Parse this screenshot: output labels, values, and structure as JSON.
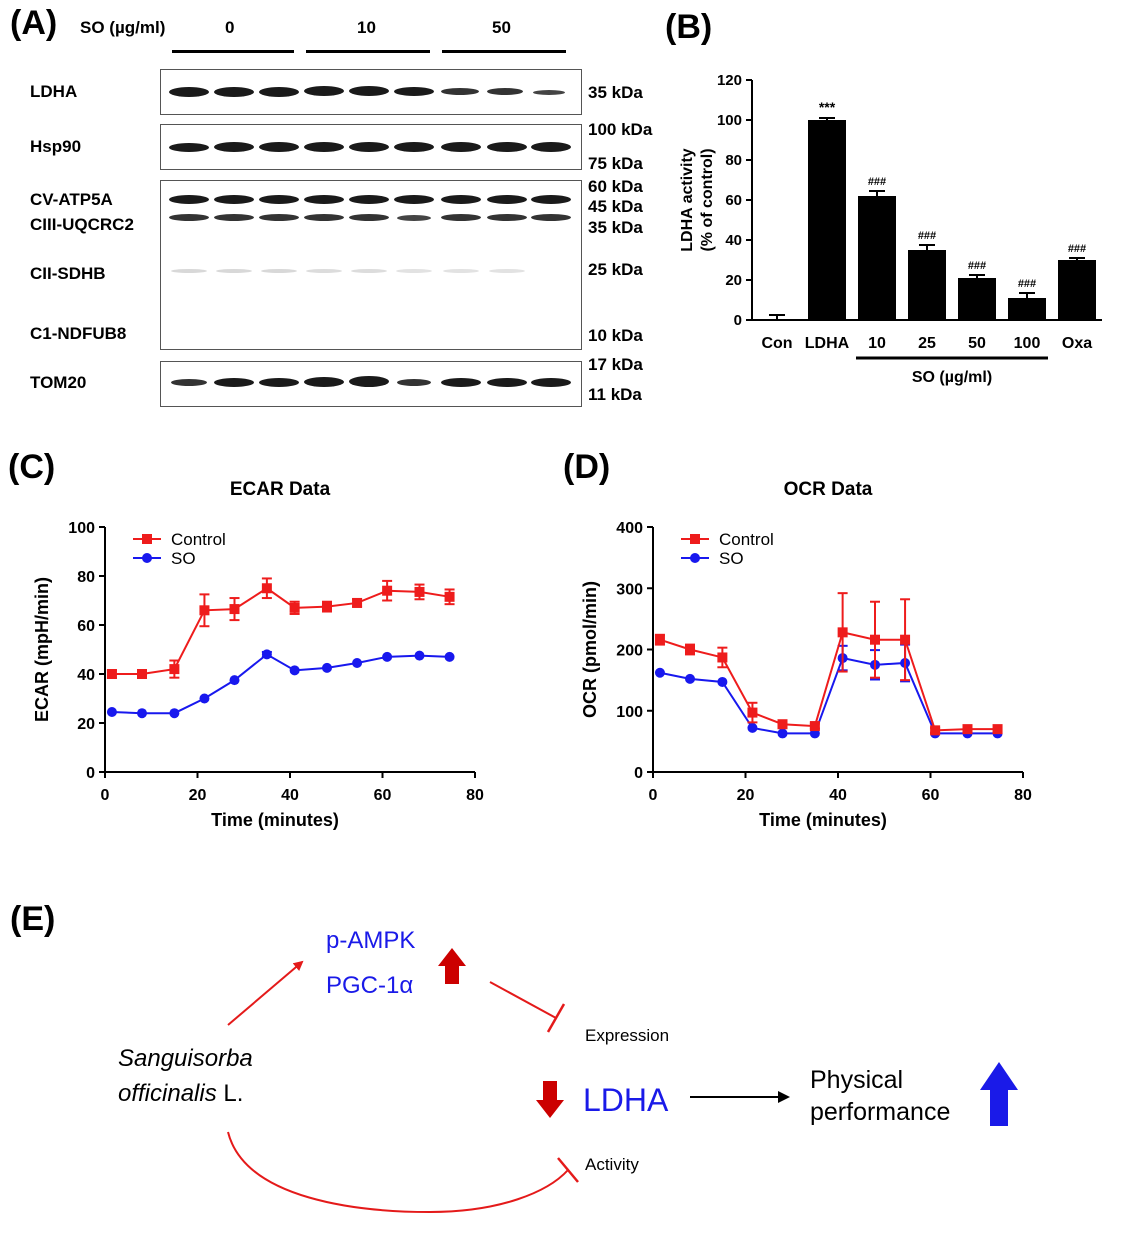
{
  "panels": {
    "a": "(A)",
    "b": "(B)",
    "c": "(C)",
    "d": "(D)",
    "e": "(E)"
  },
  "blot": {
    "so_label": "SO (µg/ml)",
    "groups": [
      "0",
      "10",
      "50"
    ],
    "rows": [
      {
        "name": "LDHA"
      },
      {
        "name": "Hsp90"
      },
      {
        "name": "CV-ATP5A"
      },
      {
        "name": "CIII-UQCRC2"
      },
      {
        "name": "CII-SDHB"
      },
      {
        "name": "C1-NDFUB8"
      },
      {
        "name": "TOM20"
      }
    ],
    "markers": [
      "35 kDa",
      "100 kDa",
      "75 kDa",
      "60 kDa",
      "45 kDa",
      "35 kDa",
      "25 kDa",
      "10 kDa",
      "17 kDa",
      "11 kDa"
    ]
  },
  "chart_data": [
    {
      "id": "B",
      "type": "bar",
      "ylabel_line1": "LDHA activity",
      "ylabel_line2": "(% of control)",
      "categories": [
        "Con",
        "LDHA",
        "10",
        "25",
        "50",
        "100",
        "Oxa"
      ],
      "values": [
        0,
        100,
        62,
        35,
        21,
        11,
        30
      ],
      "errors": [
        2.5,
        1,
        2.5,
        2.5,
        1.5,
        2.5,
        1
      ],
      "annotations": [
        "",
        "***",
        "###",
        "###",
        "###",
        "###",
        "###"
      ],
      "ylim": [
        0,
        120
      ],
      "yticks": [
        0,
        20,
        40,
        60,
        80,
        100,
        120
      ],
      "group_label": "SO (µg/ml)"
    },
    {
      "id": "C",
      "type": "line",
      "title": "ECAR Data",
      "xlabel": "Time (minutes)",
      "ylabel": "ECAR (mpH/min)",
      "xlim": [
        0,
        80
      ],
      "ylim": [
        0,
        100
      ],
      "xticks": [
        0,
        20,
        40,
        60,
        80
      ],
      "yticks": [
        0,
        20,
        40,
        60,
        80,
        100
      ],
      "series": [
        {
          "name": "Control",
          "color": "#ee1c1c",
          "marker": "square",
          "x": [
            1.5,
            8,
            15,
            21.5,
            28,
            35,
            41,
            48,
            54.5,
            61,
            68,
            74.5
          ],
          "y": [
            40,
            40,
            42,
            66,
            66.5,
            75,
            67,
            67.5,
            69,
            74,
            73.5,
            71.5
          ],
          "err": [
            1.5,
            1.5,
            3.5,
            6.5,
            4.5,
            4,
            2.5,
            2,
            1.5,
            4,
            3,
            3
          ]
        },
        {
          "name": "SO",
          "color": "#1818ee",
          "marker": "circle",
          "x": [
            1.5,
            8,
            15,
            21.5,
            28,
            35,
            41,
            48,
            54.5,
            61,
            68,
            74.5
          ],
          "y": [
            24.5,
            24,
            24,
            30,
            37.5,
            48,
            41.5,
            42.5,
            44.5,
            47,
            47.5,
            47
          ],
          "err": [
            0.5,
            0.5,
            0.5,
            0.5,
            0.5,
            1,
            0.5,
            0.5,
            0.5,
            0.5,
            0.5,
            0.5
          ]
        }
      ]
    },
    {
      "id": "D",
      "type": "line",
      "title": "OCR Data",
      "xlabel": "Time (minutes)",
      "ylabel": "OCR (pmol/min)",
      "xlim": [
        0,
        80
      ],
      "ylim": [
        0,
        400
      ],
      "xticks": [
        0,
        20,
        40,
        60,
        80
      ],
      "yticks": [
        0,
        100,
        200,
        300,
        400
      ],
      "series": [
        {
          "name": "Control",
          "color": "#ee1c1c",
          "marker": "square",
          "x": [
            1.5,
            8,
            15,
            21.5,
            28,
            35,
            41,
            48,
            54.5,
            61,
            68,
            74.5
          ],
          "y": [
            216,
            200,
            187,
            97,
            78,
            75,
            228,
            216,
            216,
            68,
            70,
            70
          ],
          "err": [
            8,
            8,
            16,
            16,
            4,
            4,
            64,
            62,
            66,
            4,
            2,
            2
          ]
        },
        {
          "name": "SO",
          "color": "#1818ee",
          "marker": "circle",
          "x": [
            1.5,
            8,
            15,
            21.5,
            28,
            35,
            41,
            48,
            54.5,
            61,
            68,
            74.5
          ],
          "y": [
            162,
            152,
            147,
            72,
            63,
            63,
            186,
            175,
            178,
            63,
            63,
            63
          ],
          "err": [
            2,
            2,
            2,
            2,
            2,
            2,
            20,
            24,
            30,
            2,
            2,
            2
          ]
        }
      ]
    }
  ],
  "diagram": {
    "plant_line1": "Sanguisorba",
    "plant_line2": "officinalis",
    "plant_suffix": " L.",
    "pampk": "p-AMPK",
    "pgc": "PGC-1α",
    "expression": "Expression",
    "activity": "Activity",
    "ldha": "LDHA",
    "perf_line1": "Physical",
    "perf_line2": "performance",
    "colors": {
      "red": "#e41a1a",
      "blue": "#1a1ae8",
      "dark_red": "#c80000"
    }
  }
}
